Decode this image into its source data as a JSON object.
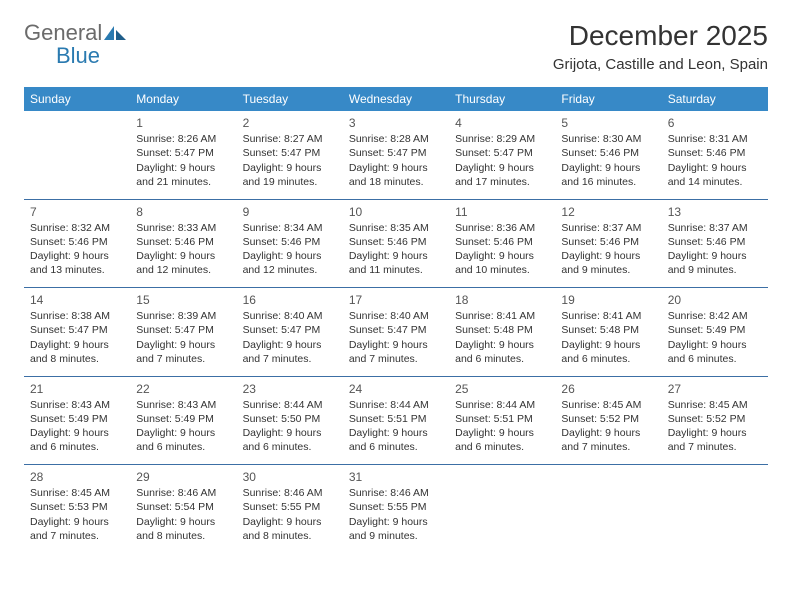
{
  "logo": {
    "general": "General",
    "blue": "Blue"
  },
  "title": "December 2025",
  "location": "Grijota, Castille and Leon, Spain",
  "colors": {
    "header_bg": "#3789c7",
    "header_fg": "#ffffff",
    "divider": "#3c6fa5",
    "text": "#333333",
    "logo_gray": "#6b6b6b",
    "logo_blue": "#2a7ab0"
  },
  "dayHeaders": [
    "Sunday",
    "Monday",
    "Tuesday",
    "Wednesday",
    "Thursday",
    "Friday",
    "Saturday"
  ],
  "weeks": [
    [
      null,
      {
        "n": "1",
        "sr": "Sunrise: 8:26 AM",
        "ss": "Sunset: 5:47 PM",
        "d1": "Daylight: 9 hours",
        "d2": "and 21 minutes."
      },
      {
        "n": "2",
        "sr": "Sunrise: 8:27 AM",
        "ss": "Sunset: 5:47 PM",
        "d1": "Daylight: 9 hours",
        "d2": "and 19 minutes."
      },
      {
        "n": "3",
        "sr": "Sunrise: 8:28 AM",
        "ss": "Sunset: 5:47 PM",
        "d1": "Daylight: 9 hours",
        "d2": "and 18 minutes."
      },
      {
        "n": "4",
        "sr": "Sunrise: 8:29 AM",
        "ss": "Sunset: 5:47 PM",
        "d1": "Daylight: 9 hours",
        "d2": "and 17 minutes."
      },
      {
        "n": "5",
        "sr": "Sunrise: 8:30 AM",
        "ss": "Sunset: 5:46 PM",
        "d1": "Daylight: 9 hours",
        "d2": "and 16 minutes."
      },
      {
        "n": "6",
        "sr": "Sunrise: 8:31 AM",
        "ss": "Sunset: 5:46 PM",
        "d1": "Daylight: 9 hours",
        "d2": "and 14 minutes."
      }
    ],
    [
      {
        "n": "7",
        "sr": "Sunrise: 8:32 AM",
        "ss": "Sunset: 5:46 PM",
        "d1": "Daylight: 9 hours",
        "d2": "and 13 minutes."
      },
      {
        "n": "8",
        "sr": "Sunrise: 8:33 AM",
        "ss": "Sunset: 5:46 PM",
        "d1": "Daylight: 9 hours",
        "d2": "and 12 minutes."
      },
      {
        "n": "9",
        "sr": "Sunrise: 8:34 AM",
        "ss": "Sunset: 5:46 PM",
        "d1": "Daylight: 9 hours",
        "d2": "and 12 minutes."
      },
      {
        "n": "10",
        "sr": "Sunrise: 8:35 AM",
        "ss": "Sunset: 5:46 PM",
        "d1": "Daylight: 9 hours",
        "d2": "and 11 minutes."
      },
      {
        "n": "11",
        "sr": "Sunrise: 8:36 AM",
        "ss": "Sunset: 5:46 PM",
        "d1": "Daylight: 9 hours",
        "d2": "and 10 minutes."
      },
      {
        "n": "12",
        "sr": "Sunrise: 8:37 AM",
        "ss": "Sunset: 5:46 PM",
        "d1": "Daylight: 9 hours",
        "d2": "and 9 minutes."
      },
      {
        "n": "13",
        "sr": "Sunrise: 8:37 AM",
        "ss": "Sunset: 5:46 PM",
        "d1": "Daylight: 9 hours",
        "d2": "and 9 minutes."
      }
    ],
    [
      {
        "n": "14",
        "sr": "Sunrise: 8:38 AM",
        "ss": "Sunset: 5:47 PM",
        "d1": "Daylight: 9 hours",
        "d2": "and 8 minutes."
      },
      {
        "n": "15",
        "sr": "Sunrise: 8:39 AM",
        "ss": "Sunset: 5:47 PM",
        "d1": "Daylight: 9 hours",
        "d2": "and 7 minutes."
      },
      {
        "n": "16",
        "sr": "Sunrise: 8:40 AM",
        "ss": "Sunset: 5:47 PM",
        "d1": "Daylight: 9 hours",
        "d2": "and 7 minutes."
      },
      {
        "n": "17",
        "sr": "Sunrise: 8:40 AM",
        "ss": "Sunset: 5:47 PM",
        "d1": "Daylight: 9 hours",
        "d2": "and 7 minutes."
      },
      {
        "n": "18",
        "sr": "Sunrise: 8:41 AM",
        "ss": "Sunset: 5:48 PM",
        "d1": "Daylight: 9 hours",
        "d2": "and 6 minutes."
      },
      {
        "n": "19",
        "sr": "Sunrise: 8:41 AM",
        "ss": "Sunset: 5:48 PM",
        "d1": "Daylight: 9 hours",
        "d2": "and 6 minutes."
      },
      {
        "n": "20",
        "sr": "Sunrise: 8:42 AM",
        "ss": "Sunset: 5:49 PM",
        "d1": "Daylight: 9 hours",
        "d2": "and 6 minutes."
      }
    ],
    [
      {
        "n": "21",
        "sr": "Sunrise: 8:43 AM",
        "ss": "Sunset: 5:49 PM",
        "d1": "Daylight: 9 hours",
        "d2": "and 6 minutes."
      },
      {
        "n": "22",
        "sr": "Sunrise: 8:43 AM",
        "ss": "Sunset: 5:49 PM",
        "d1": "Daylight: 9 hours",
        "d2": "and 6 minutes."
      },
      {
        "n": "23",
        "sr": "Sunrise: 8:44 AM",
        "ss": "Sunset: 5:50 PM",
        "d1": "Daylight: 9 hours",
        "d2": "and 6 minutes."
      },
      {
        "n": "24",
        "sr": "Sunrise: 8:44 AM",
        "ss": "Sunset: 5:51 PM",
        "d1": "Daylight: 9 hours",
        "d2": "and 6 minutes."
      },
      {
        "n": "25",
        "sr": "Sunrise: 8:44 AM",
        "ss": "Sunset: 5:51 PM",
        "d1": "Daylight: 9 hours",
        "d2": "and 6 minutes."
      },
      {
        "n": "26",
        "sr": "Sunrise: 8:45 AM",
        "ss": "Sunset: 5:52 PM",
        "d1": "Daylight: 9 hours",
        "d2": "and 7 minutes."
      },
      {
        "n": "27",
        "sr": "Sunrise: 8:45 AM",
        "ss": "Sunset: 5:52 PM",
        "d1": "Daylight: 9 hours",
        "d2": "and 7 minutes."
      }
    ],
    [
      {
        "n": "28",
        "sr": "Sunrise: 8:45 AM",
        "ss": "Sunset: 5:53 PM",
        "d1": "Daylight: 9 hours",
        "d2": "and 7 minutes."
      },
      {
        "n": "29",
        "sr": "Sunrise: 8:46 AM",
        "ss": "Sunset: 5:54 PM",
        "d1": "Daylight: 9 hours",
        "d2": "and 8 minutes."
      },
      {
        "n": "30",
        "sr": "Sunrise: 8:46 AM",
        "ss": "Sunset: 5:55 PM",
        "d1": "Daylight: 9 hours",
        "d2": "and 8 minutes."
      },
      {
        "n": "31",
        "sr": "Sunrise: 8:46 AM",
        "ss": "Sunset: 5:55 PM",
        "d1": "Daylight: 9 hours",
        "d2": "and 9 minutes."
      },
      null,
      null,
      null
    ]
  ]
}
